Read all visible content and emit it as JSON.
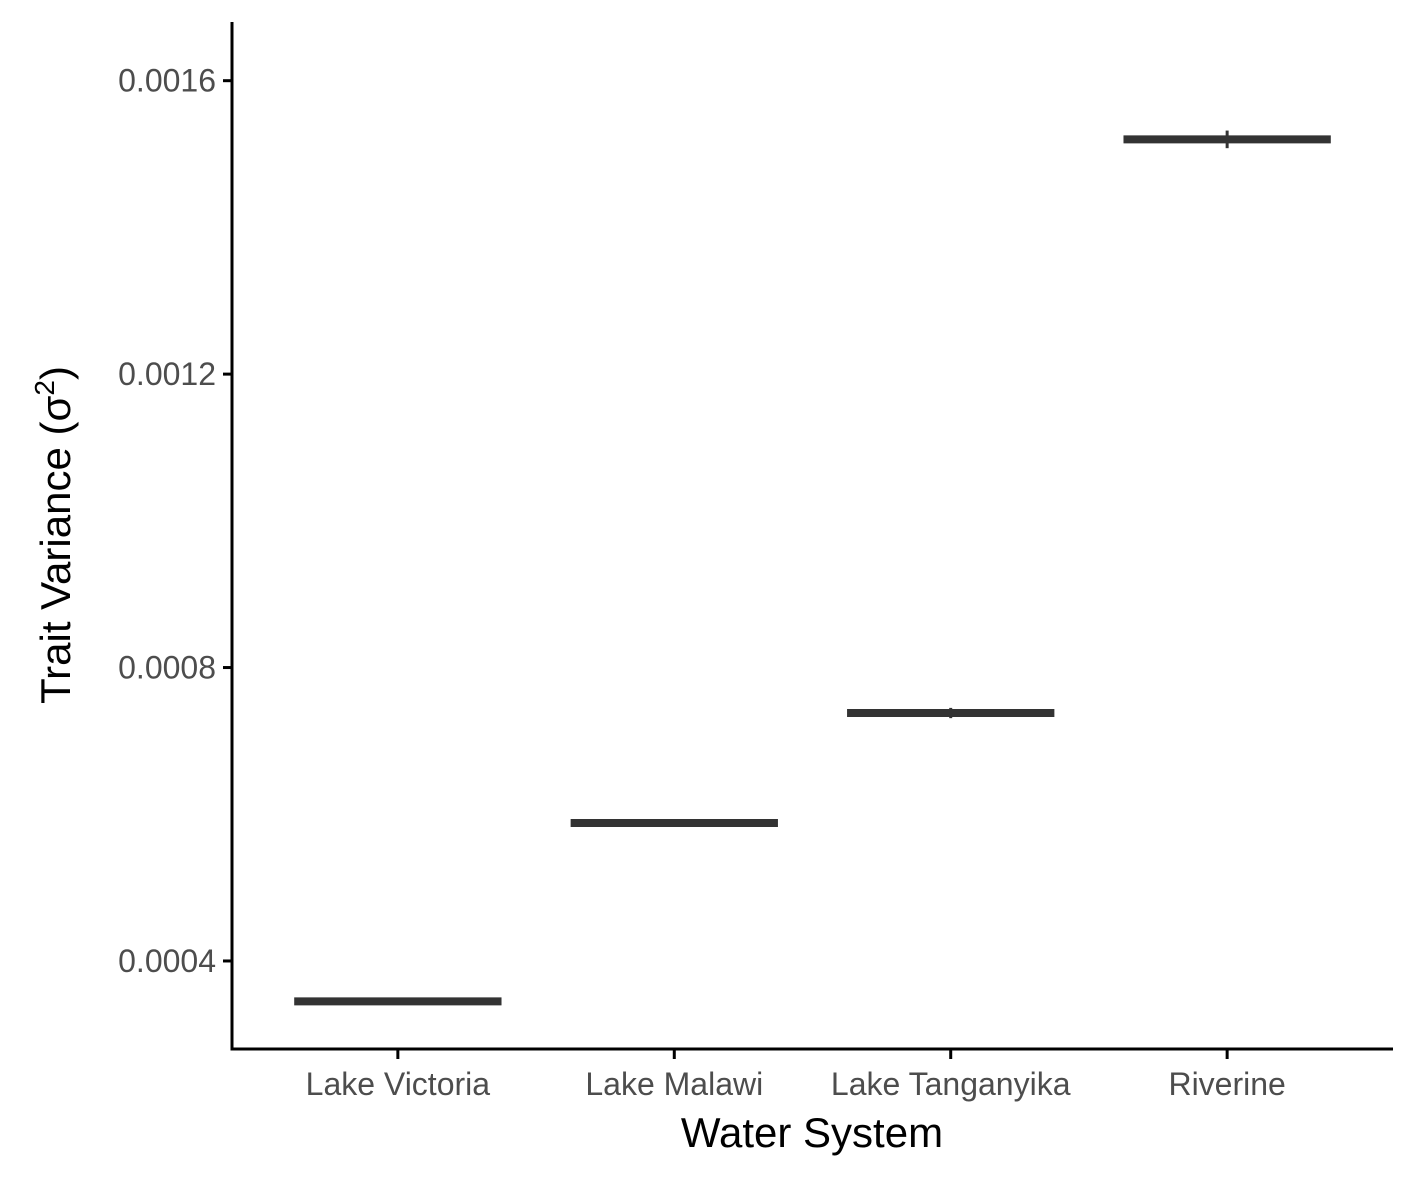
{
  "chart_data": {
    "type": "box",
    "categories": [
      "Lake Victoria",
      "Lake Malawi",
      "Lake Tanganyika",
      "Riverine"
    ],
    "values": [
      0.000345,
      0.000588,
      0.000738,
      0.00152
    ],
    "whisker_ranges": [
      [
        0.000345,
        0.000345
      ],
      [
        0.000588,
        0.000588
      ],
      [
        0.000731,
        0.000745
      ],
      [
        0.001508,
        0.001532
      ]
    ],
    "xlabel": "Water System",
    "ylabel": "Trait Variance (σ",
    "ylabel_superscript": "2",
    "ylabel_suffix": ")",
    "ylim": [
      0.00028,
      0.00168
    ],
    "yticks": [
      0.0004,
      0.0008,
      0.0012,
      0.0016
    ],
    "ytick_labels": [
      "0.0004",
      "0.0008",
      "0.0012",
      "0.0016"
    ],
    "grid": false,
    "colors": {
      "box": "#333333",
      "axis": "#000000",
      "tick_text": "#4d4d4d"
    }
  }
}
